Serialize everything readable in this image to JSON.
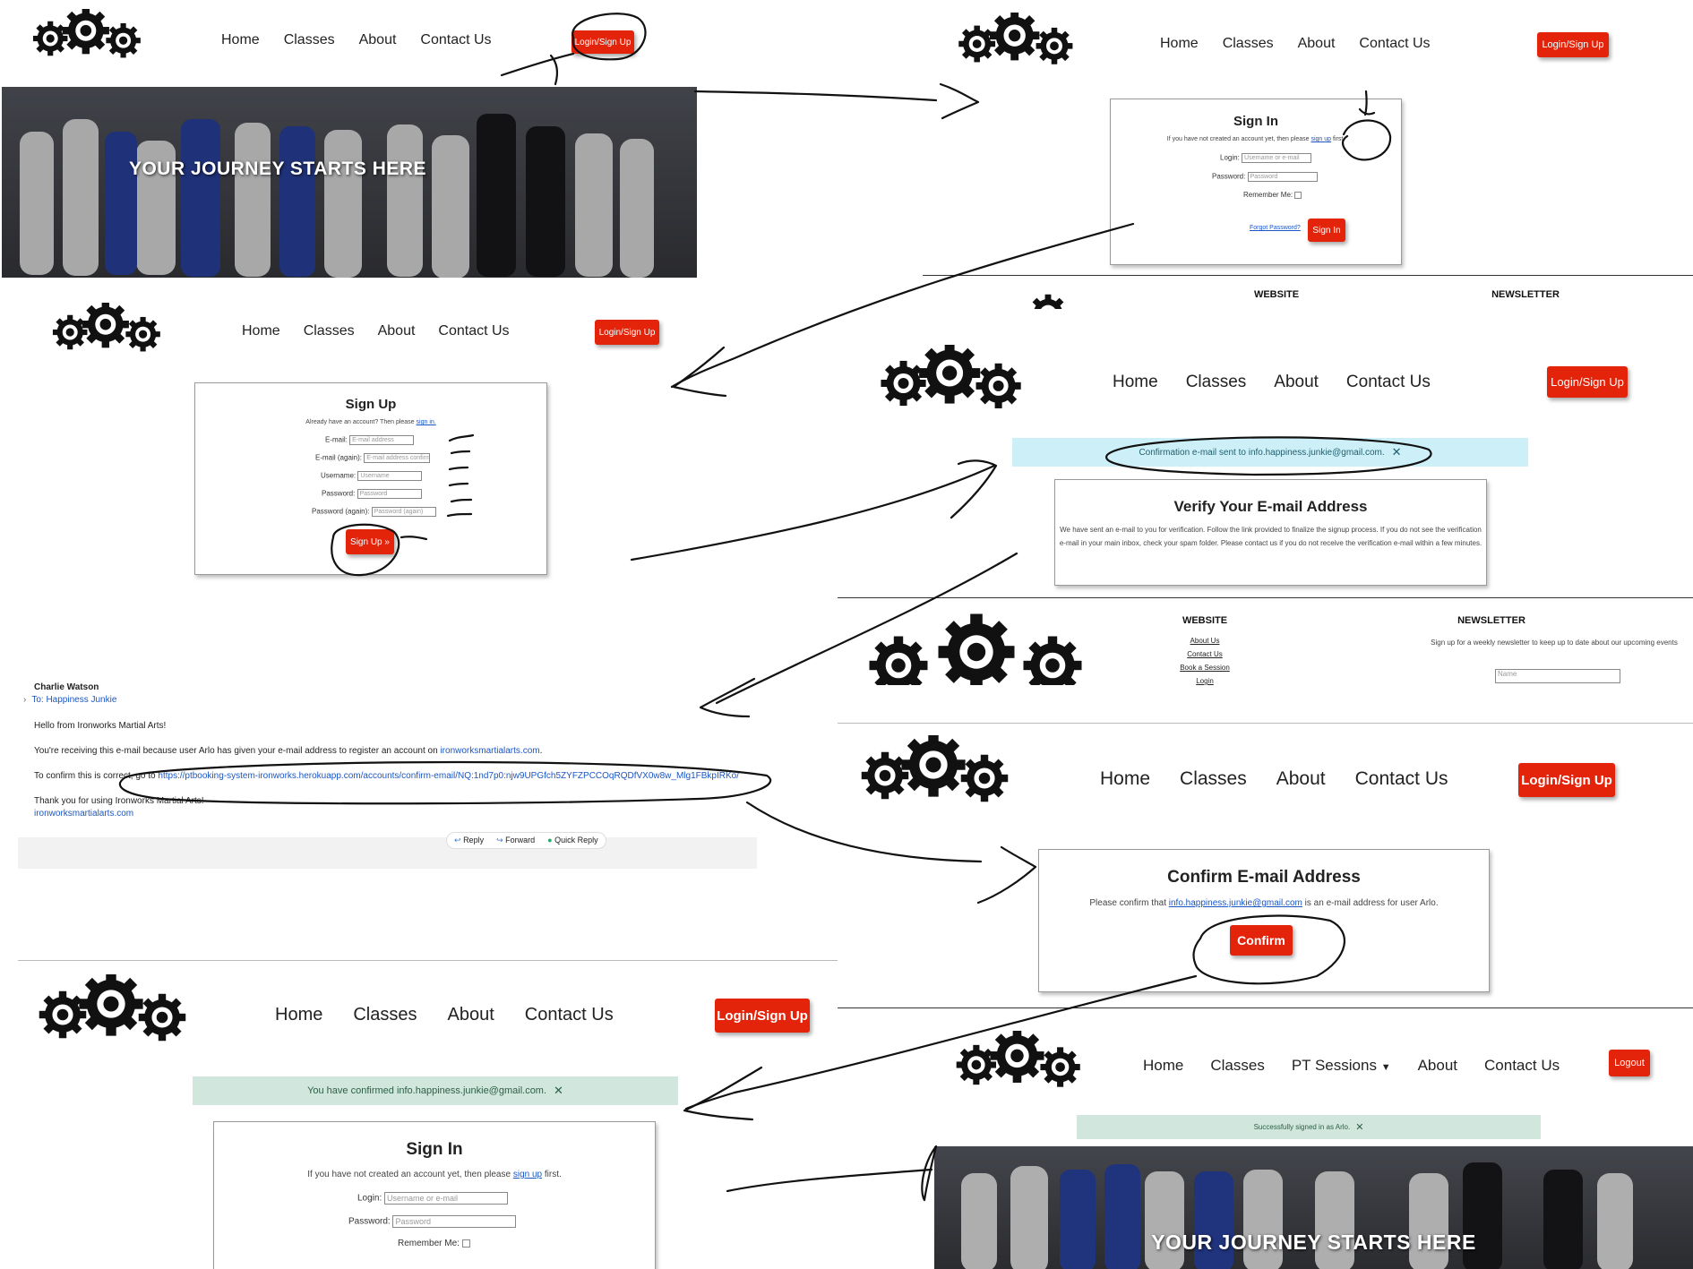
{
  "nav": {
    "home": "Home",
    "classes": "Classes",
    "about": "About",
    "contact": "Contact Us",
    "pt_sessions": "PT Sessions",
    "login_signup": "Login/Sign Up",
    "logout": "Logout"
  },
  "logo": {
    "title": "Ironworks Martial Arts"
  },
  "hero": {
    "text": "YOUR JOURNEY STARTS HERE"
  },
  "signin": {
    "title": "Sign In",
    "intro_before": "If you have not created an account yet, then please",
    "intro_link": "sign up",
    "intro_after": "first.",
    "login_label": "Login:",
    "login_placeholder": "Username or e-mail",
    "password_label": "Password:",
    "password_placeholder": "Password",
    "remember_label": "Remember Me:",
    "forgot_link": "Forgot Password?",
    "button": "Sign In"
  },
  "footer": {
    "website_title": "WEBSITE",
    "newsletter_title": "NEWSLETTER",
    "links": [
      "About Us",
      "Contact Us",
      "Book a Session",
      "Login"
    ],
    "newsletter_text": "Sign up for a weekly newsletter to keep up to date about our upcoming events",
    "name_placeholder": "Name"
  },
  "signup": {
    "title": "Sign Up",
    "intro_before": "Already have an account? Then please",
    "intro_link": "sign in.",
    "fields": [
      {
        "label": "E-mail:",
        "placeholder": "E-mail address"
      },
      {
        "label": "E-mail (again):",
        "placeholder": "E-mail address confirmation"
      },
      {
        "label": "Username:",
        "placeholder": "Username"
      },
      {
        "label": "Password:",
        "placeholder": "Password"
      },
      {
        "label": "Password (again):",
        "placeholder": "Password (again)"
      }
    ],
    "button": "Sign Up »"
  },
  "verify": {
    "alert": "Confirmation e-mail sent to info.happiness.junkie@gmail.com.",
    "title": "Verify Your E-mail Address",
    "body": "We have sent an e-mail to you for verification. Follow the link provided to finalize the signup process. If you do not see the verification e-mail in your main inbox, check your spam folder. Please contact us if you do not receive the verification e-mail within a few minutes."
  },
  "email": {
    "sender": "Charlie Watson",
    "to": "To: Happiness Junkie",
    "greeting": "Hello from Ironworks Martial Arts!",
    "line1_before": "You're receiving this e-mail because user Arlo has given your e-mail address to register an account on",
    "line1_link": "ironworksmartialarts.com",
    "line2_before": "To confirm this is correct, go to",
    "line2_link": "https://ptbooking-system-ironworks.herokuapp.com/accounts/confirm-email/NQ:1nd7p0:njw9UPGfch5ZYFZPCCOqRQDfVX0w8w_Mlg1FBkpIRKo/",
    "thanks": "Thank you for using Ironworks Martial Arts!",
    "signature_link": "ironworksmartialarts.com",
    "reply": "Reply",
    "forward": "Forward",
    "quick_reply": "Quick Reply"
  },
  "confirm": {
    "title": "Confirm E-mail Address",
    "text_before": "Please confirm that",
    "email": "info.happiness.junkie@gmail.com",
    "text_after": "is an e-mail address for user Arlo.",
    "button": "Confirm"
  },
  "confirmed": {
    "alert": "You have confirmed info.happiness.junkie@gmail.com."
  },
  "signedin": {
    "alert": "Successfully signed in as Arlo."
  },
  "colors": {
    "accent": "#e3240b",
    "link": "#1a56c4",
    "alert_info": "#cdf0f8",
    "alert_success": "#d1e7dd"
  }
}
